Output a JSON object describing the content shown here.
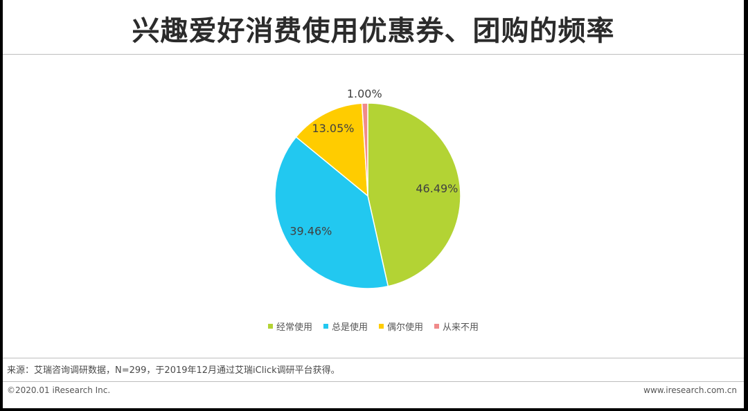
{
  "slide": {
    "title": "兴趣爱好消费使用优惠券、团购的频率",
    "source": "来源：艾瑞咨询调研数据，N=299，于2019年12月通过艾瑞iClick调研平台获得。",
    "copyright": "©2020.01 iResearch Inc.",
    "site": "www.iresearch.com.cn"
  },
  "chart_data": {
    "type": "pie",
    "slices": [
      {
        "label": "经常使用",
        "value": 46.49,
        "text": "46.49%",
        "color": "#b3d334"
      },
      {
        "label": "总是使用",
        "value": 39.46,
        "text": "39.46%",
        "color": "#22c8f0"
      },
      {
        "label": "偶尔使用",
        "value": 13.05,
        "text": "13.05%",
        "color": "#ffcc00"
      },
      {
        "label": "从来不用",
        "value": 1.0,
        "text": "1.00%",
        "color": "#f08a8a"
      }
    ],
    "legend_position": "bottom"
  }
}
